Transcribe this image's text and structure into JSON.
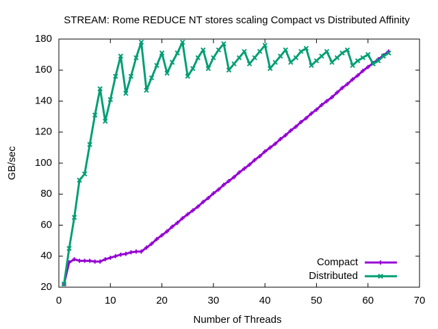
{
  "chart_data": {
    "type": "line",
    "title": "STREAM: Rome REDUCE NT stores scaling Compact vs Distributed Affinity",
    "x_label": "Number of Threads",
    "y_label": "GB/sec",
    "x": [
      1,
      2,
      3,
      4,
      5,
      6,
      7,
      8,
      9,
      10,
      11,
      12,
      13,
      14,
      15,
      16,
      17,
      18,
      19,
      20,
      21,
      22,
      23,
      24,
      25,
      26,
      27,
      28,
      29,
      30,
      31,
      32,
      33,
      34,
      35,
      36,
      37,
      38,
      39,
      40,
      41,
      42,
      43,
      44,
      45,
      46,
      47,
      48,
      49,
      50,
      51,
      52,
      53,
      54,
      55,
      56,
      57,
      58,
      59,
      60,
      61,
      62,
      63,
      64
    ],
    "series": [
      {
        "name": "Compact",
        "color": "#9400d3",
        "marker": "plus",
        "values": [
          22,
          36,
          38,
          37,
          37,
          37,
          36.5,
          36.5,
          38,
          39,
          40,
          41,
          41.5,
          42.5,
          43,
          43,
          45.5,
          48,
          51,
          53.5,
          56,
          59,
          61.5,
          64.5,
          67,
          69.5,
          72,
          75,
          77.5,
          80.5,
          83,
          86,
          88.5,
          91,
          94,
          96.5,
          99,
          102,
          104.5,
          107.5,
          110,
          112.5,
          115.5,
          118,
          121,
          123.5,
          126.5,
          129,
          132,
          134.5,
          137.5,
          140,
          142.5,
          145.5,
          148.5,
          151,
          154,
          156.5,
          159.5,
          162,
          164.5,
          167,
          169.5,
          172
        ]
      },
      {
        "name": "Distributed",
        "color": "#009e73",
        "marker": "cross",
        "values": [
          22,
          45,
          65,
          89,
          93,
          112,
          131,
          148,
          127,
          141,
          156,
          169,
          145,
          156,
          168,
          178,
          147,
          155,
          163,
          171,
          158,
          165,
          171,
          178,
          156,
          161,
          168,
          173,
          161,
          168,
          173,
          177,
          160,
          164,
          168,
          172,
          164,
          168,
          172,
          176,
          161,
          165,
          169,
          173,
          165,
          168,
          172,
          174,
          163,
          166,
          169,
          172,
          165,
          168,
          171,
          173,
          163,
          166,
          168,
          170,
          164,
          166,
          169,
          171
        ]
      }
    ],
    "xlim": [
      0,
      70
    ],
    "xticks": [
      0,
      10,
      20,
      30,
      40,
      50,
      60,
      70
    ],
    "ylim": [
      20,
      180
    ],
    "yticks": [
      20,
      40,
      60,
      80,
      100,
      120,
      140,
      160,
      180
    ],
    "legend": "bottom-right",
    "grid": false
  }
}
